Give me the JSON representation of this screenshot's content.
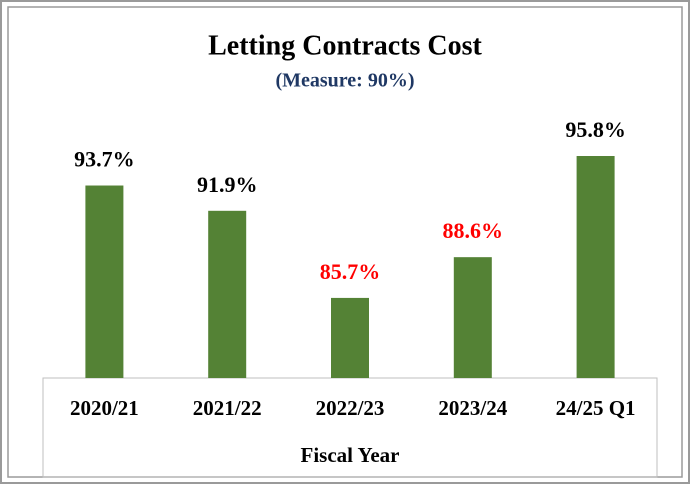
{
  "chart_data": {
    "type": "bar",
    "title": "Letting Contracts Cost",
    "subtitle": "(Measure: 90%)",
    "x_label": "Fiscal Year",
    "categories": [
      "2020/21",
      "2021/22",
      "2022/23",
      "2023/24",
      "24/25 Q1"
    ],
    "values": [
      93.7,
      91.9,
      85.7,
      88.6,
      95.8
    ],
    "value_labels": [
      "93.7%",
      "91.9%",
      "85.7%",
      "88.6%",
      "95.8%"
    ],
    "value_label_colors": [
      "#000000",
      "#000000",
      "#ff0000",
      "#ff0000",
      "#000000"
    ],
    "color": "#548235",
    "ylim": [
      80,
      100
    ]
  }
}
